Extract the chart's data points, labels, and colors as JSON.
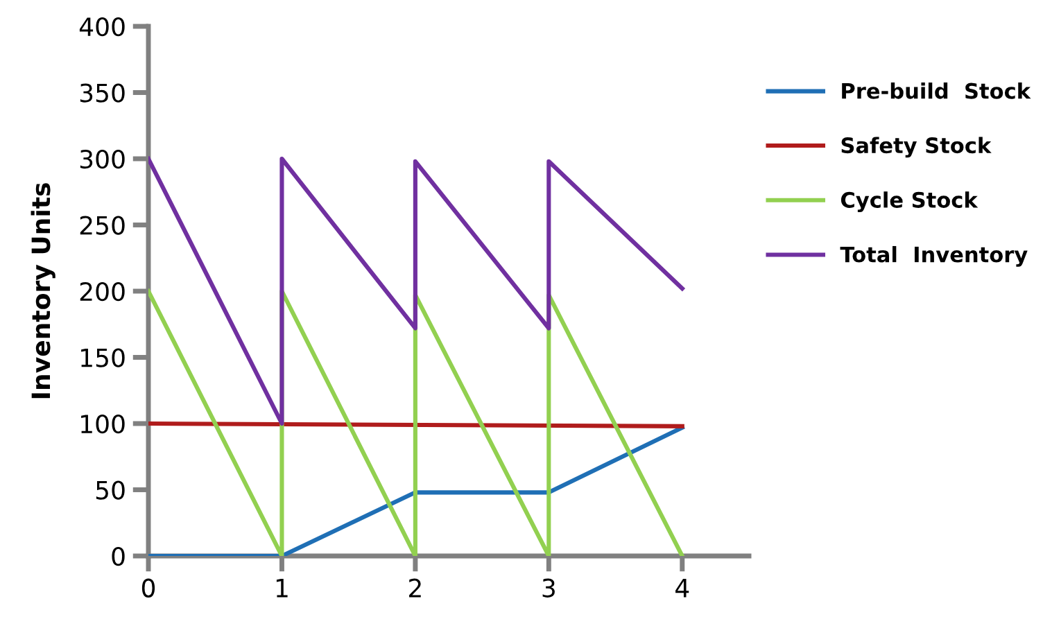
{
  "chart_data": {
    "type": "line",
    "ylabel": "Inventory Units",
    "xlim": [
      0,
      4.5
    ],
    "xticks": [
      0,
      1,
      2,
      3,
      4
    ],
    "ylim": [
      0,
      400
    ],
    "yticks": [
      0,
      50,
      100,
      150,
      200,
      250,
      300,
      350,
      400
    ],
    "grid": false,
    "legend": "right",
    "marker": "none",
    "line_style": "solid",
    "series": [
      {
        "name": "Pre-build  Stock",
        "color": "#1f6fb5",
        "x": [
          0,
          1,
          2,
          3,
          4
        ],
        "values": [
          0,
          0,
          48,
          48,
          97
        ]
      },
      {
        "name": "Safety Stock",
        "color": "#b01c1c",
        "x": [
          0,
          4
        ],
        "values": [
          100,
          98
        ]
      },
      {
        "name": "Cycle Stock",
        "color": "#92d050",
        "x": [
          0,
          1,
          1,
          2,
          2,
          3,
          3,
          4
        ],
        "values": [
          200,
          0,
          200,
          0,
          197,
          0,
          197,
          0
        ]
      },
      {
        "name": "Total  Inventory",
        "color": "#7030a0",
        "x": [
          0,
          1,
          1,
          2,
          2,
          3,
          3,
          4
        ],
        "values": [
          300,
          100,
          300,
          172,
          298,
          172,
          298,
          202
        ]
      }
    ]
  }
}
